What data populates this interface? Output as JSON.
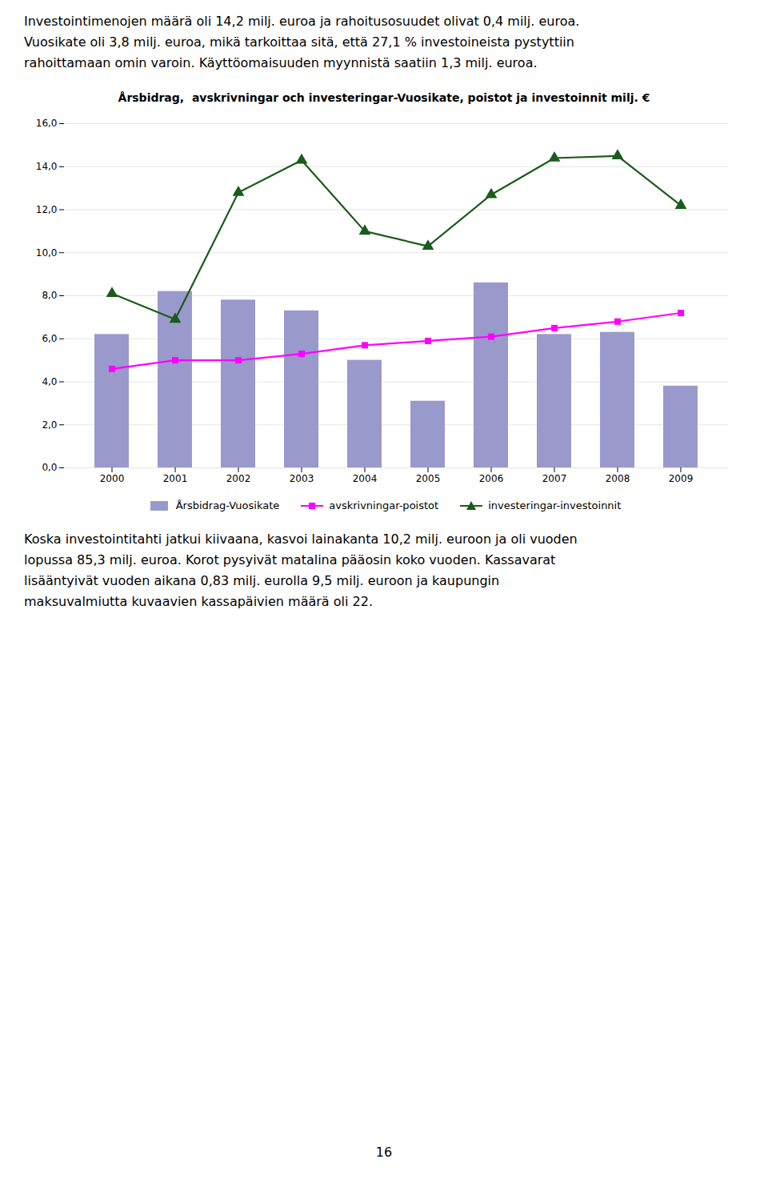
{
  "text_above": [
    "Investointimenojen määrä oli 14,2 milj. euroa ja rahoitusosuudet olivat 0,4 milj. euroa.",
    "Vuosikate oli 3,8 milj. euroa, mikä tarkoittaa sitä, että 27,1 % investoineista pystyttiin",
    "rahoittamaan omin varoin. Käyttöomaisuuden myynnistä saatiin 1,3 milj. euroa."
  ],
  "chart_data": {
    "type": "bar",
    "title": "Årsbidrag,  avskrivningar och investeringar-Vuosikate, poistot ja investoinnit milj. €",
    "categories": [
      2000,
      2001,
      2002,
      2003,
      2004,
      2005,
      2006,
      2007,
      2008,
      2009
    ],
    "series": [
      {
        "name": "Årsbidrag-Vuosikate",
        "type": "bar",
        "color": "#9999cc",
        "values": [
          6.2,
          8.2,
          7.8,
          7.3,
          5.0,
          3.1,
          8.6,
          6.2,
          6.3,
          3.8
        ]
      },
      {
        "name": "avskrivningar-poistot",
        "type": "line",
        "color": "#ff00ff",
        "marker": "square",
        "values": [
          4.6,
          5.0,
          5.0,
          5.3,
          5.7,
          5.9,
          6.1,
          6.5,
          6.8,
          7.2
        ]
      },
      {
        "name": "investeringar-investoinnit",
        "type": "line",
        "color": "#1a5c1a",
        "marker": "triangle",
        "values": [
          8.1,
          6.9,
          12.8,
          14.3,
          11.0,
          10.3,
          12.7,
          14.4,
          14.5,
          12.2
        ]
      }
    ],
    "ylim": [
      0,
      16
    ],
    "yticks": [
      {
        "value": 0,
        "label": "0,0"
      },
      {
        "value": 2,
        "label": "2,0"
      },
      {
        "value": 4,
        "label": "4,0"
      },
      {
        "value": 6,
        "label": "6,0"
      },
      {
        "value": 8,
        "label": "8,0"
      },
      {
        "value": 10,
        "label": "10,0"
      },
      {
        "value": 12,
        "label": "12,0"
      },
      {
        "value": 14,
        "label": "14,0"
      },
      {
        "value": 16,
        "label": "16,0"
      }
    ],
    "grid": true,
    "legend": "bottom"
  },
  "text_below": [
    "Koska investointitahti jatkui kiivaana, kasvoi lainakanta 10,2 milj. euroon ja oli vuoden",
    "lopussa 85,3 milj. euroa. Korot pysyivät matalina pääosin koko vuoden. Kassavarat",
    "lisääntyivät vuoden aikana 0,83 milj. eurolla 9,5 milj. euroon ja kaupungin",
    "maksuvalmiutta kuvaavien kassapäivien määrä oli 22."
  ],
  "page_number": 16
}
